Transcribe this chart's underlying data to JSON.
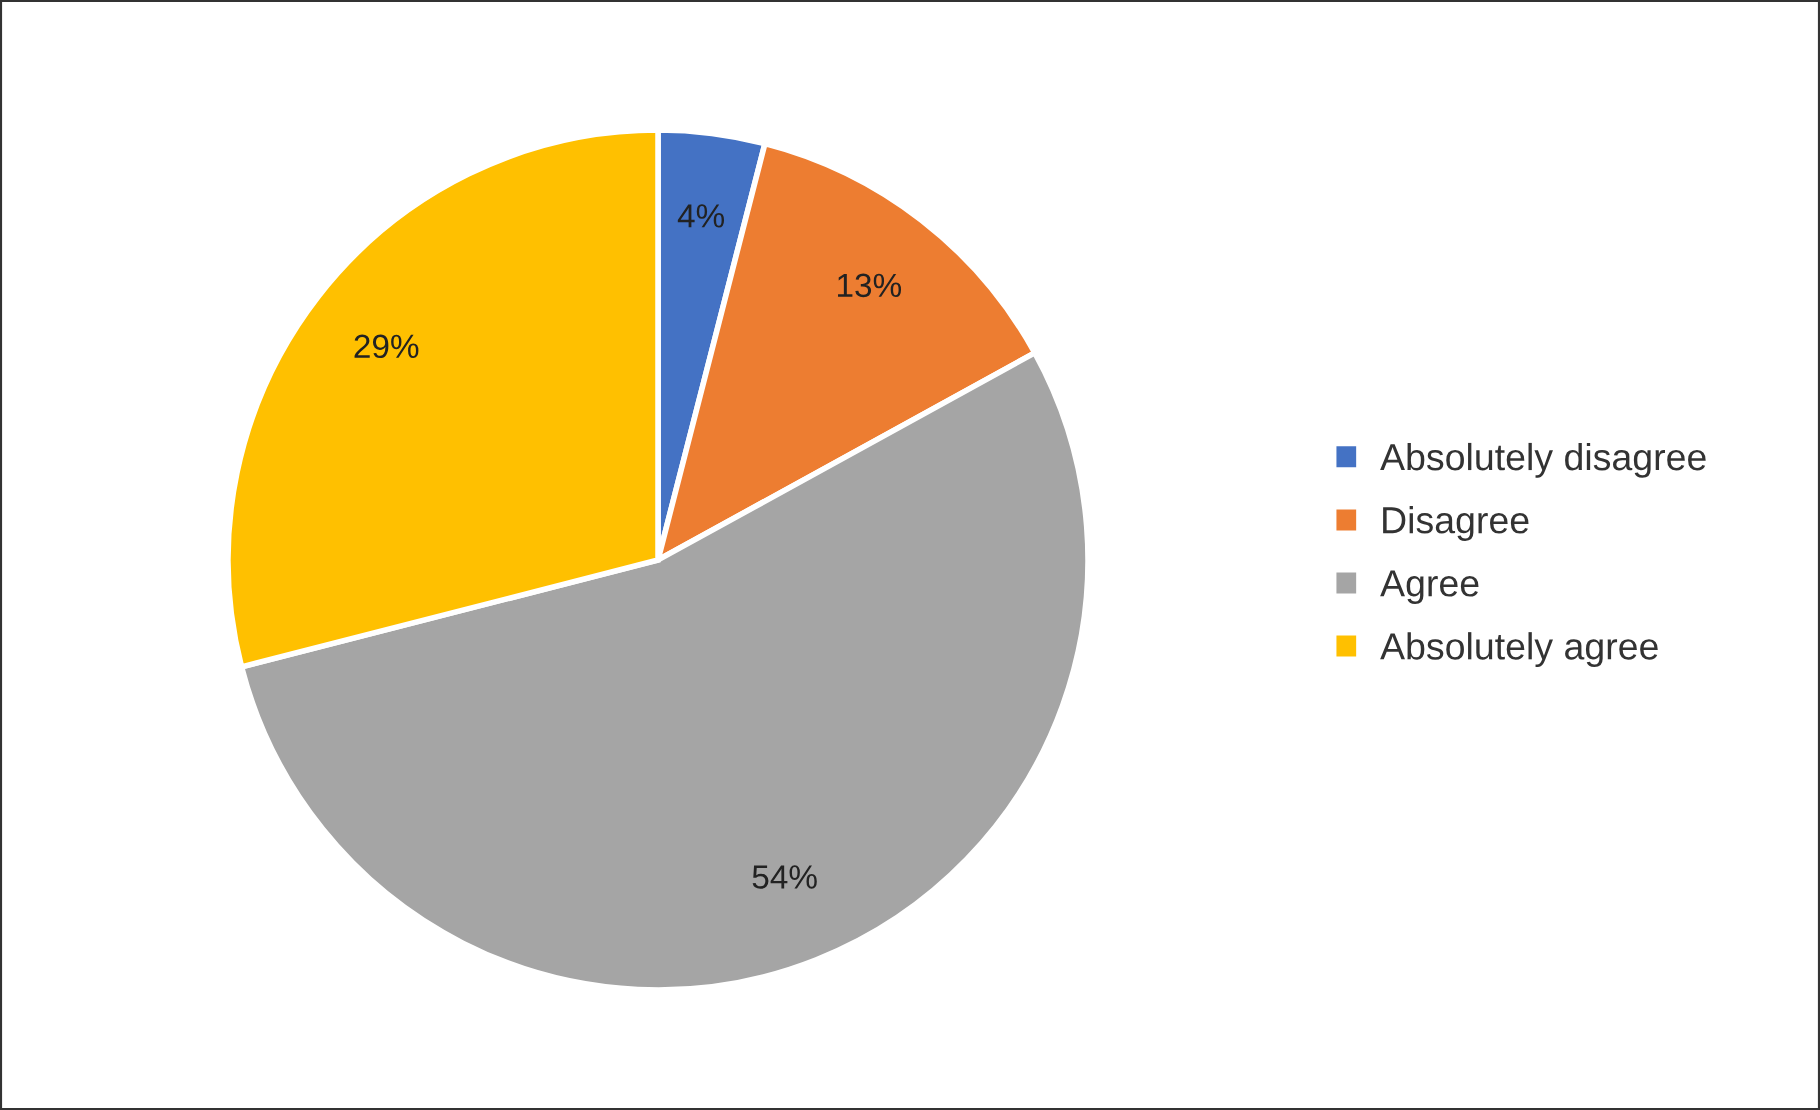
{
  "chart_data": {
    "type": "pie",
    "categories": [
      "Absolutely disagree",
      "Disagree",
      "Agree",
      "Absolutely agree"
    ],
    "values": [
      4,
      13,
      54,
      29
    ],
    "colors": [
      "#4472c4",
      "#ed7d31",
      "#a5a5a5",
      "#ffc000"
    ],
    "value_labels": [
      "4%",
      "13%",
      "54%",
      "29%"
    ],
    "legend": "right"
  }
}
